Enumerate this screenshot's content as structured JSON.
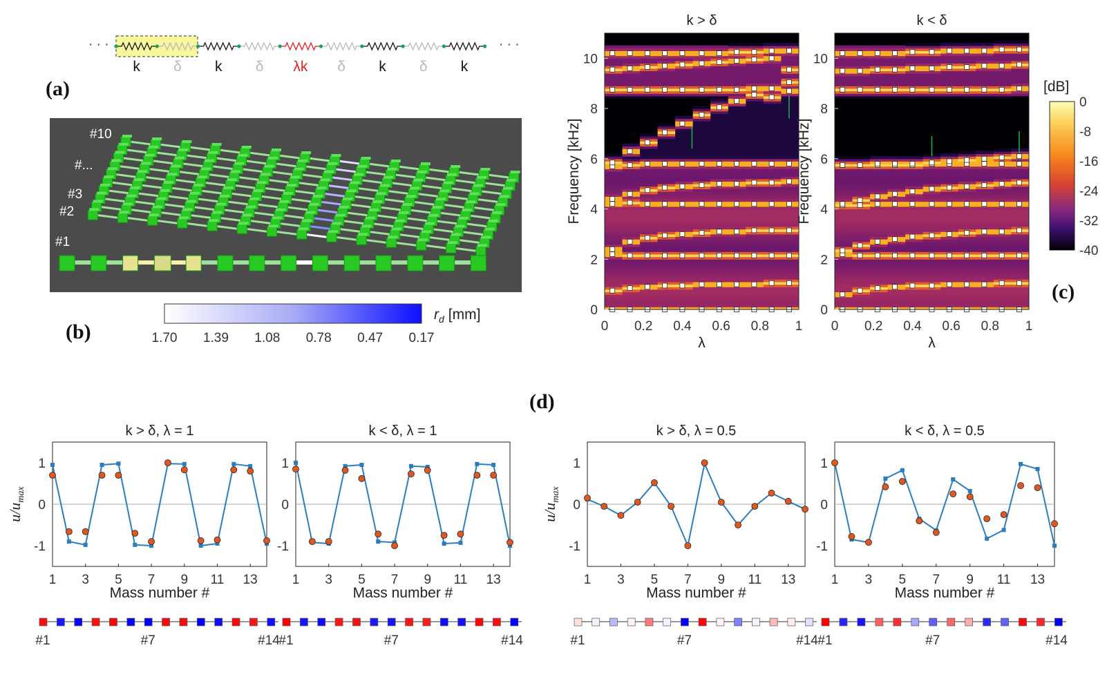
{
  "panel_a": {
    "label": "(a)",
    "ellipsis": "· · ·",
    "springs": [
      {
        "label": "k",
        "color": "#111111"
      },
      {
        "label": "δ",
        "color": "#b8b8b8"
      },
      {
        "label": "k",
        "color": "#111111"
      },
      {
        "label": "δ",
        "color": "#b8b8b8"
      },
      {
        "label": "λk",
        "color": "#e0201c"
      },
      {
        "label": "δ",
        "color": "#b8b8b8"
      },
      {
        "label": "k",
        "color": "#111111"
      },
      {
        "label": "δ",
        "color": "#b8b8b8"
      },
      {
        "label": "k",
        "color": "#111111"
      }
    ]
  },
  "panel_b": {
    "label": "(b)",
    "row_labels": [
      "#10",
      "#...",
      "#3",
      "#2",
      "#1"
    ],
    "colorbar_ticks": [
      "1.70",
      "1.39",
      "1.08",
      "0.78",
      "0.47",
      "0.17"
    ],
    "colorbar_label_sym": "r",
    "colorbar_label_sub": "d",
    "colorbar_label_unit": "[mm]",
    "colors": {
      "mass": "#22c21e",
      "highlight": "#e9e49a",
      "bar_end": "#0b10ff",
      "background": "#4a4a4a"
    }
  },
  "panel_c": {
    "label": "(c)",
    "colorbar_unit": "[dB]",
    "colorbar_ticks": [
      "0",
      "-8",
      "-16",
      "-24",
      "-32",
      "-40"
    ],
    "subplots": [
      {
        "title": "k > δ",
        "ylabel": "Frequency [kHz]",
        "xlabel": "λ"
      },
      {
        "title": "k < δ",
        "ylabel": "Frequency [kHz]",
        "xlabel": "λ"
      }
    ],
    "x_ticks": [
      "0",
      "0.2",
      "0.4",
      "0.6",
      "0.8",
      "1"
    ],
    "y_ticks": [
      "0",
      "2",
      "4",
      "6",
      "8",
      "10"
    ]
  },
  "panel_d": {
    "label": "(d)",
    "ylabel_main": "u/u",
    "ylabel_sub": "max",
    "xlabel": "Mass number #",
    "x_ticks": [
      "1",
      "3",
      "5",
      "7",
      "9",
      "11",
      "13"
    ],
    "y_ticks": [
      "1",
      "0",
      "-1"
    ],
    "mass_labels": [
      "#1",
      "#7",
      "#14"
    ],
    "titles": [
      "k > δ, λ = 1",
      "k < δ, λ = 1",
      "k > δ, λ = 0.5",
      "k < δ, λ = 0.5"
    ]
  },
  "chart_data": [
    {
      "type": "heatmap",
      "title": "k > δ",
      "xlabel": "λ",
      "ylabel": "Frequency [kHz]",
      "xlim": [
        0,
        1
      ],
      "ylim": [
        0,
        11
      ],
      "colorbar": {
        "label": "[dB]",
        "range": [
          -40,
          0
        ]
      },
      "lambda": [
        0.04,
        0.13,
        0.22,
        0.31,
        0.4,
        0.5,
        0.59,
        0.68,
        0.77,
        0.86,
        0.95
      ],
      "marker_frequencies_kHz": [
        [
          0.0,
          0.75,
          2.2,
          2.4,
          4.2,
          4.4,
          5.7,
          5.85,
          8.75,
          9.55,
          10.2
        ],
        [
          0.0,
          0.85,
          2.15,
          2.7,
          4.25,
          4.6,
          5.75,
          6.3,
          8.75,
          9.6,
          10.2
        ],
        [
          0.0,
          0.9,
          2.15,
          2.85,
          4.2,
          4.75,
          5.8,
          6.65,
          8.75,
          9.65,
          10.2
        ],
        [
          0.0,
          0.95,
          2.15,
          2.95,
          4.2,
          4.85,
          5.8,
          7.05,
          8.75,
          9.7,
          10.2
        ],
        [
          0.0,
          0.95,
          2.15,
          3.0,
          4.2,
          4.9,
          5.8,
          7.4,
          8.75,
          9.75,
          10.2
        ],
        [
          0.0,
          1.0,
          2.15,
          3.05,
          4.2,
          4.95,
          5.8,
          7.75,
          8.75,
          9.8,
          10.2
        ],
        [
          0.0,
          1.0,
          2.15,
          3.1,
          4.2,
          5.0,
          5.8,
          8.05,
          8.75,
          9.85,
          10.2
        ],
        [
          0.0,
          1.0,
          2.15,
          3.1,
          4.2,
          5.0,
          5.8,
          8.3,
          8.75,
          9.9,
          10.25
        ],
        [
          0.0,
          1.0,
          2.15,
          3.15,
          4.2,
          5.05,
          5.8,
          8.55,
          8.8,
          9.95,
          10.25
        ],
        [
          0.0,
          1.05,
          2.15,
          3.15,
          4.2,
          5.05,
          5.8,
          8.45,
          8.8,
          10.0,
          10.3
        ],
        [
          0.0,
          1.05,
          2.15,
          3.15,
          4.2,
          5.1,
          5.8,
          8.7,
          9.05,
          9.55,
          10.3
        ]
      ]
    },
    {
      "type": "heatmap",
      "title": "k < δ",
      "xlabel": "λ",
      "ylabel": "Frequency [kHz]",
      "xlim": [
        0,
        1
      ],
      "ylim": [
        0,
        11
      ],
      "colorbar": {
        "label": "[dB]",
        "range": [
          -40,
          0
        ]
      },
      "lambda": [
        0.04,
        0.13,
        0.22,
        0.31,
        0.4,
        0.5,
        0.59,
        0.68,
        0.77,
        0.86,
        0.95
      ],
      "marker_frequencies_kHz": [
        [
          0.0,
          0.6,
          2.2,
          2.35,
          4.15,
          4.2,
          5.75,
          5.75,
          8.75,
          9.5,
          10.2
        ],
        [
          0.0,
          0.75,
          2.15,
          2.55,
          4.15,
          4.35,
          5.75,
          5.75,
          8.75,
          9.5,
          10.2
        ],
        [
          0.0,
          0.85,
          2.15,
          2.7,
          4.2,
          4.5,
          5.75,
          5.8,
          8.75,
          9.55,
          10.2
        ],
        [
          0.0,
          0.9,
          2.15,
          2.8,
          4.2,
          4.6,
          5.75,
          5.8,
          8.75,
          9.55,
          10.2
        ],
        [
          0.0,
          0.95,
          2.15,
          2.9,
          4.2,
          4.7,
          5.75,
          5.8,
          8.75,
          9.6,
          10.25
        ],
        [
          0.0,
          0.95,
          2.15,
          2.95,
          4.2,
          4.8,
          5.8,
          5.85,
          8.75,
          9.6,
          10.25
        ],
        [
          0.0,
          1.0,
          2.15,
          3.0,
          4.2,
          4.85,
          5.8,
          5.9,
          8.75,
          9.65,
          10.3
        ],
        [
          0.0,
          1.0,
          2.15,
          3.05,
          4.2,
          4.9,
          5.8,
          5.95,
          8.75,
          9.65,
          10.3
        ],
        [
          0.0,
          1.0,
          2.15,
          3.1,
          4.2,
          4.95,
          5.8,
          6.0,
          8.75,
          9.7,
          10.3
        ],
        [
          0.0,
          1.05,
          2.15,
          3.1,
          4.2,
          5.0,
          5.8,
          6.05,
          8.75,
          9.7,
          10.35
        ],
        [
          0.0,
          1.05,
          2.15,
          3.15,
          4.2,
          5.05,
          5.8,
          6.1,
          8.8,
          9.75,
          10.35
        ]
      ]
    },
    {
      "type": "line",
      "title": "k > δ, λ = 1",
      "xlabel": "Mass number #",
      "ylim": [
        -1.5,
        1.5
      ],
      "x": [
        1,
        2,
        3,
        4,
        5,
        6,
        7,
        8,
        9,
        10,
        11,
        12,
        13,
        14
      ],
      "series": [
        {
          "kind": "line",
          "values": [
            0.95,
            -0.9,
            -0.98,
            0.95,
            0.98,
            -0.98,
            -1.0,
            0.98,
            0.97,
            -1.0,
            -0.95,
            0.97,
            0.92,
            -0.95
          ]
        },
        {
          "kind": "markers",
          "values": [
            0.7,
            -0.66,
            -0.66,
            0.7,
            0.7,
            -0.7,
            -0.9,
            1.0,
            0.83,
            -0.88,
            -0.86,
            0.83,
            0.8,
            -0.88
          ]
        }
      ]
    },
    {
      "type": "line",
      "title": "k < δ, λ = 1",
      "xlabel": "Mass number #",
      "ylim": [
        -1.5,
        1.5
      ],
      "x": [
        1,
        2,
        3,
        4,
        5,
        6,
        7,
        8,
        9,
        10,
        11,
        12,
        13,
        14
      ],
      "series": [
        {
          "kind": "line",
          "values": [
            1.0,
            -0.92,
            -0.95,
            0.92,
            0.95,
            -0.9,
            -0.92,
            0.92,
            0.9,
            -0.95,
            -0.93,
            0.97,
            0.95,
            -1.0
          ]
        },
        {
          "kind": "markers",
          "values": [
            0.85,
            -0.9,
            -0.9,
            0.82,
            0.62,
            -0.72,
            -1.0,
            0.73,
            0.82,
            -0.75,
            -0.72,
            0.7,
            0.7,
            -0.92
          ]
        }
      ]
    },
    {
      "type": "line",
      "title": "k > δ, λ = 0.5",
      "xlabel": "Mass number #",
      "ylim": [
        -1.5,
        1.5
      ],
      "x": [
        1,
        2,
        3,
        4,
        5,
        6,
        7,
        8,
        9,
        10,
        11,
        12,
        13,
        14
      ],
      "series": [
        {
          "kind": "line",
          "values": [
            0.12,
            -0.05,
            -0.27,
            0.05,
            0.52,
            -0.05,
            -1.0,
            0.98,
            0.05,
            -0.5,
            -0.05,
            0.27,
            0.07,
            -0.12
          ]
        },
        {
          "kind": "markers",
          "values": [
            0.15,
            -0.05,
            -0.27,
            0.05,
            0.52,
            -0.05,
            -1.0,
            1.0,
            0.05,
            -0.5,
            -0.05,
            0.27,
            0.07,
            -0.12
          ]
        }
      ]
    },
    {
      "type": "line",
      "title": "k < δ, λ = 0.5",
      "xlabel": "Mass number #",
      "ylim": [
        -1.5,
        1.5
      ],
      "x": [
        1,
        2,
        3,
        4,
        5,
        6,
        7,
        8,
        9,
        10,
        11,
        12,
        13,
        14
      ],
      "series": [
        {
          "kind": "line",
          "values": [
            1.0,
            -0.85,
            -0.92,
            0.62,
            0.82,
            -0.35,
            -0.63,
            0.6,
            0.32,
            -0.83,
            -0.62,
            0.97,
            0.85,
            -1.0
          ]
        },
        {
          "kind": "markers",
          "values": [
            1.0,
            -0.78,
            -0.92,
            0.42,
            0.55,
            -0.4,
            -0.68,
            0.25,
            0.18,
            -0.35,
            -0.25,
            0.45,
            0.4,
            -0.47
          ]
        }
      ]
    }
  ]
}
